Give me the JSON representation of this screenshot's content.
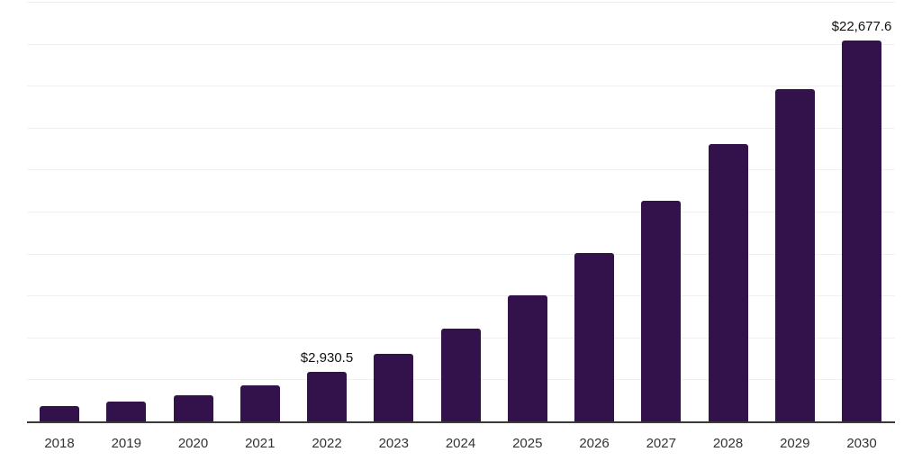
{
  "chart_data": {
    "type": "bar",
    "title": "",
    "xlabel": "",
    "ylabel": "",
    "categories": [
      "2018",
      "2019",
      "2020",
      "2021",
      "2022",
      "2023",
      "2024",
      "2025",
      "2026",
      "2027",
      "2028",
      "2029",
      "2030"
    ],
    "values": [
      900,
      1175,
      1550,
      2140,
      2930.5,
      4030,
      5520,
      7530,
      10040,
      13140,
      16510,
      19820,
      22677.6
    ],
    "points": [
      {
        "year": "2018",
        "value": 900,
        "label": ""
      },
      {
        "year": "2019",
        "value": 1175,
        "label": ""
      },
      {
        "year": "2020",
        "value": 1550,
        "label": ""
      },
      {
        "year": "2021",
        "value": 2140,
        "label": ""
      },
      {
        "year": "2022",
        "value": 2930.5,
        "label": "$2,930.5"
      },
      {
        "year": "2023",
        "value": 4030,
        "label": ""
      },
      {
        "year": "2024",
        "value": 5520,
        "label": ""
      },
      {
        "year": "2025",
        "value": 7530,
        "label": ""
      },
      {
        "year": "2026",
        "value": 10040,
        "label": ""
      },
      {
        "year": "2027",
        "value": 13140,
        "label": ""
      },
      {
        "year": "2028",
        "value": 16510,
        "label": ""
      },
      {
        "year": "2029",
        "value": 19820,
        "label": ""
      },
      {
        "year": "2030",
        "value": 22677.6,
        "label": "$22,677.6"
      }
    ],
    "ylim": [
      0,
      25000
    ],
    "grid": true,
    "grid_divisions": 10,
    "grid_interval": 2500,
    "legend": "none",
    "colors": {
      "bar": "#33114a",
      "axis_line": "#3a3a3a",
      "gridline": "#f0f0f0",
      "tick_label": "#333333",
      "value_label": "#111111",
      "background": "#ffffff"
    }
  }
}
